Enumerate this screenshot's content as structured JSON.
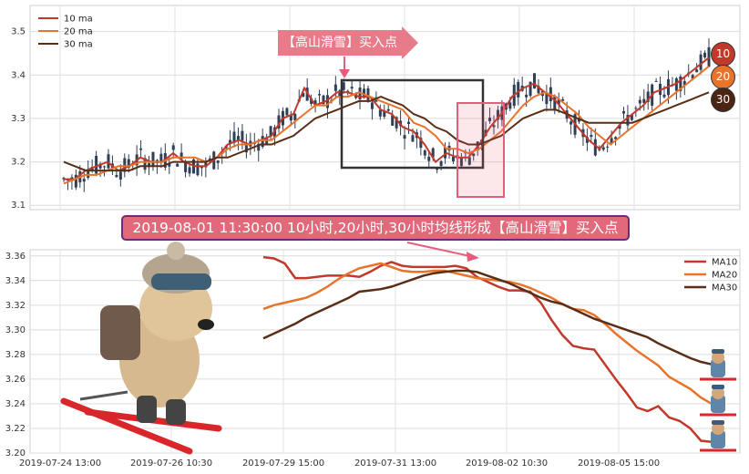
{
  "annotations": {
    "callout": "【高山滑雪】买入点",
    "banner": "2019-08-01 11:30:00 10小时,20小时,30小时均线形成【高山滑雪】买入点",
    "badges": [
      "10",
      "20",
      "30"
    ]
  },
  "colors": {
    "ma10": "#c0392b",
    "ma20": "#e8742b",
    "ma30": "#5a2e16",
    "candle": "#2f3f57",
    "highlight": "#e85c7b",
    "badge10": "#c0392b",
    "badge20": "#e8742b",
    "badge30": "#4a2515"
  },
  "chart_data": [
    {
      "type": "candlestick",
      "legend": [
        "10 ma",
        "20 ma",
        "30 ma"
      ],
      "legend_position": "top-left",
      "ylim": [
        3.09,
        3.56
      ],
      "yticks": [
        3.1,
        3.2,
        3.3,
        3.4,
        3.5
      ],
      "grid": true,
      "n_bars": 160,
      "series": [
        {
          "name": "10 ma",
          "values": [
            3.16,
            3.16,
            3.18,
            3.19,
            3.2,
            3.18,
            3.19,
            3.21,
            3.2,
            3.2,
            3.22,
            3.2,
            3.19,
            3.19,
            3.21,
            3.24,
            3.25,
            3.24,
            3.25,
            3.26,
            3.3,
            3.31,
            3.37,
            3.33,
            3.34,
            3.36,
            3.36,
            3.35,
            3.35,
            3.32,
            3.31,
            3.28,
            3.27,
            3.24,
            3.2,
            3.22,
            3.21,
            3.21,
            3.24,
            3.28,
            3.31,
            3.35,
            3.37,
            3.38,
            3.36,
            3.34,
            3.31,
            3.28,
            3.25,
            3.23,
            3.26,
            3.29,
            3.31,
            3.33,
            3.36,
            3.37,
            3.38,
            3.4,
            3.42,
            3.44
          ]
        },
        {
          "name": "20 ma",
          "values": [
            3.15,
            3.16,
            3.17,
            3.17,
            3.18,
            3.19,
            3.19,
            3.2,
            3.2,
            3.2,
            3.21,
            3.21,
            3.21,
            3.2,
            3.21,
            3.23,
            3.24,
            3.24,
            3.25,
            3.25,
            3.27,
            3.29,
            3.31,
            3.33,
            3.33,
            3.35,
            3.35,
            3.36,
            3.35,
            3.34,
            3.33,
            3.32,
            3.29,
            3.28,
            3.26,
            3.23,
            3.23,
            3.22,
            3.23,
            3.25,
            3.27,
            3.3,
            3.33,
            3.35,
            3.36,
            3.35,
            3.33,
            3.31,
            3.28,
            3.26,
            3.24,
            3.26,
            3.28,
            3.3,
            3.32,
            3.34,
            3.36,
            3.38,
            3.4,
            3.42
          ]
        },
        {
          "name": "30 ma",
          "values": [
            3.2,
            3.19,
            3.18,
            3.18,
            3.18,
            3.18,
            3.18,
            3.19,
            3.19,
            3.19,
            3.2,
            3.2,
            3.2,
            3.2,
            3.21,
            3.21,
            3.22,
            3.23,
            3.24,
            3.24,
            3.25,
            3.26,
            3.28,
            3.3,
            3.31,
            3.32,
            3.33,
            3.34,
            3.34,
            3.35,
            3.34,
            3.33,
            3.31,
            3.3,
            3.28,
            3.27,
            3.25,
            3.24,
            3.24,
            3.25,
            3.26,
            3.28,
            3.3,
            3.31,
            3.32,
            3.32,
            3.31,
            3.3,
            3.29,
            3.29,
            3.29,
            3.29,
            3.29,
            3.3,
            3.31,
            3.32,
            3.33,
            3.34,
            3.35,
            3.36
          ]
        }
      ]
    },
    {
      "type": "line",
      "x_ticks": [
        "2019-07-24 13:00",
        "2019-07-26 10:30",
        "2019-07-29 15:00",
        "2019-07-31 13:00",
        "2019-08-02 10:30",
        "2019-08-05 15:00"
      ],
      "ylim": [
        3.2,
        3.365
      ],
      "yticks": [
        3.2,
        3.22,
        3.24,
        3.26,
        3.28,
        3.3,
        3.32,
        3.34,
        3.36
      ],
      "grid": true,
      "legend_position": "top-right",
      "series": [
        {
          "name": "MA10",
          "values": [
            3.359,
            3.358,
            3.354,
            3.342,
            3.342,
            3.343,
            3.344,
            3.344,
            3.344,
            3.343,
            3.347,
            3.352,
            3.355,
            3.352,
            3.351,
            3.351,
            3.351,
            3.351,
            3.352,
            3.35,
            3.343,
            3.339,
            3.335,
            3.332,
            3.332,
            3.331,
            3.322,
            3.308,
            3.296,
            3.287,
            3.285,
            3.284,
            3.272,
            3.26,
            3.249,
            3.237,
            3.234,
            3.238,
            3.229,
            3.226,
            3.22,
            3.21,
            3.209
          ]
        },
        {
          "name": "MA20",
          "values": [
            3.317,
            3.32,
            3.322,
            3.324,
            3.326,
            3.33,
            3.335,
            3.341,
            3.346,
            3.35,
            3.352,
            3.354,
            3.351,
            3.348,
            3.347,
            3.347,
            3.348,
            3.348,
            3.346,
            3.344,
            3.342,
            3.341,
            3.34,
            3.339,
            3.337,
            3.334,
            3.33,
            3.326,
            3.321,
            3.317,
            3.316,
            3.312,
            3.305,
            3.297,
            3.29,
            3.283,
            3.277,
            3.271,
            3.262,
            3.257,
            3.252,
            3.245,
            3.24
          ]
        },
        {
          "name": "MA30",
          "values": [
            3.293,
            3.297,
            3.301,
            3.305,
            3.31,
            3.314,
            3.318,
            3.322,
            3.326,
            3.331,
            3.332,
            3.333,
            3.335,
            3.338,
            3.341,
            3.344,
            3.346,
            3.347,
            3.348,
            3.348,
            3.347,
            3.344,
            3.341,
            3.338,
            3.334,
            3.33,
            3.326,
            3.323,
            3.321,
            3.317,
            3.313,
            3.309,
            3.306,
            3.303,
            3.3,
            3.297,
            3.294,
            3.289,
            3.285,
            3.281,
            3.277,
            3.274,
            3.272
          ]
        }
      ]
    }
  ]
}
